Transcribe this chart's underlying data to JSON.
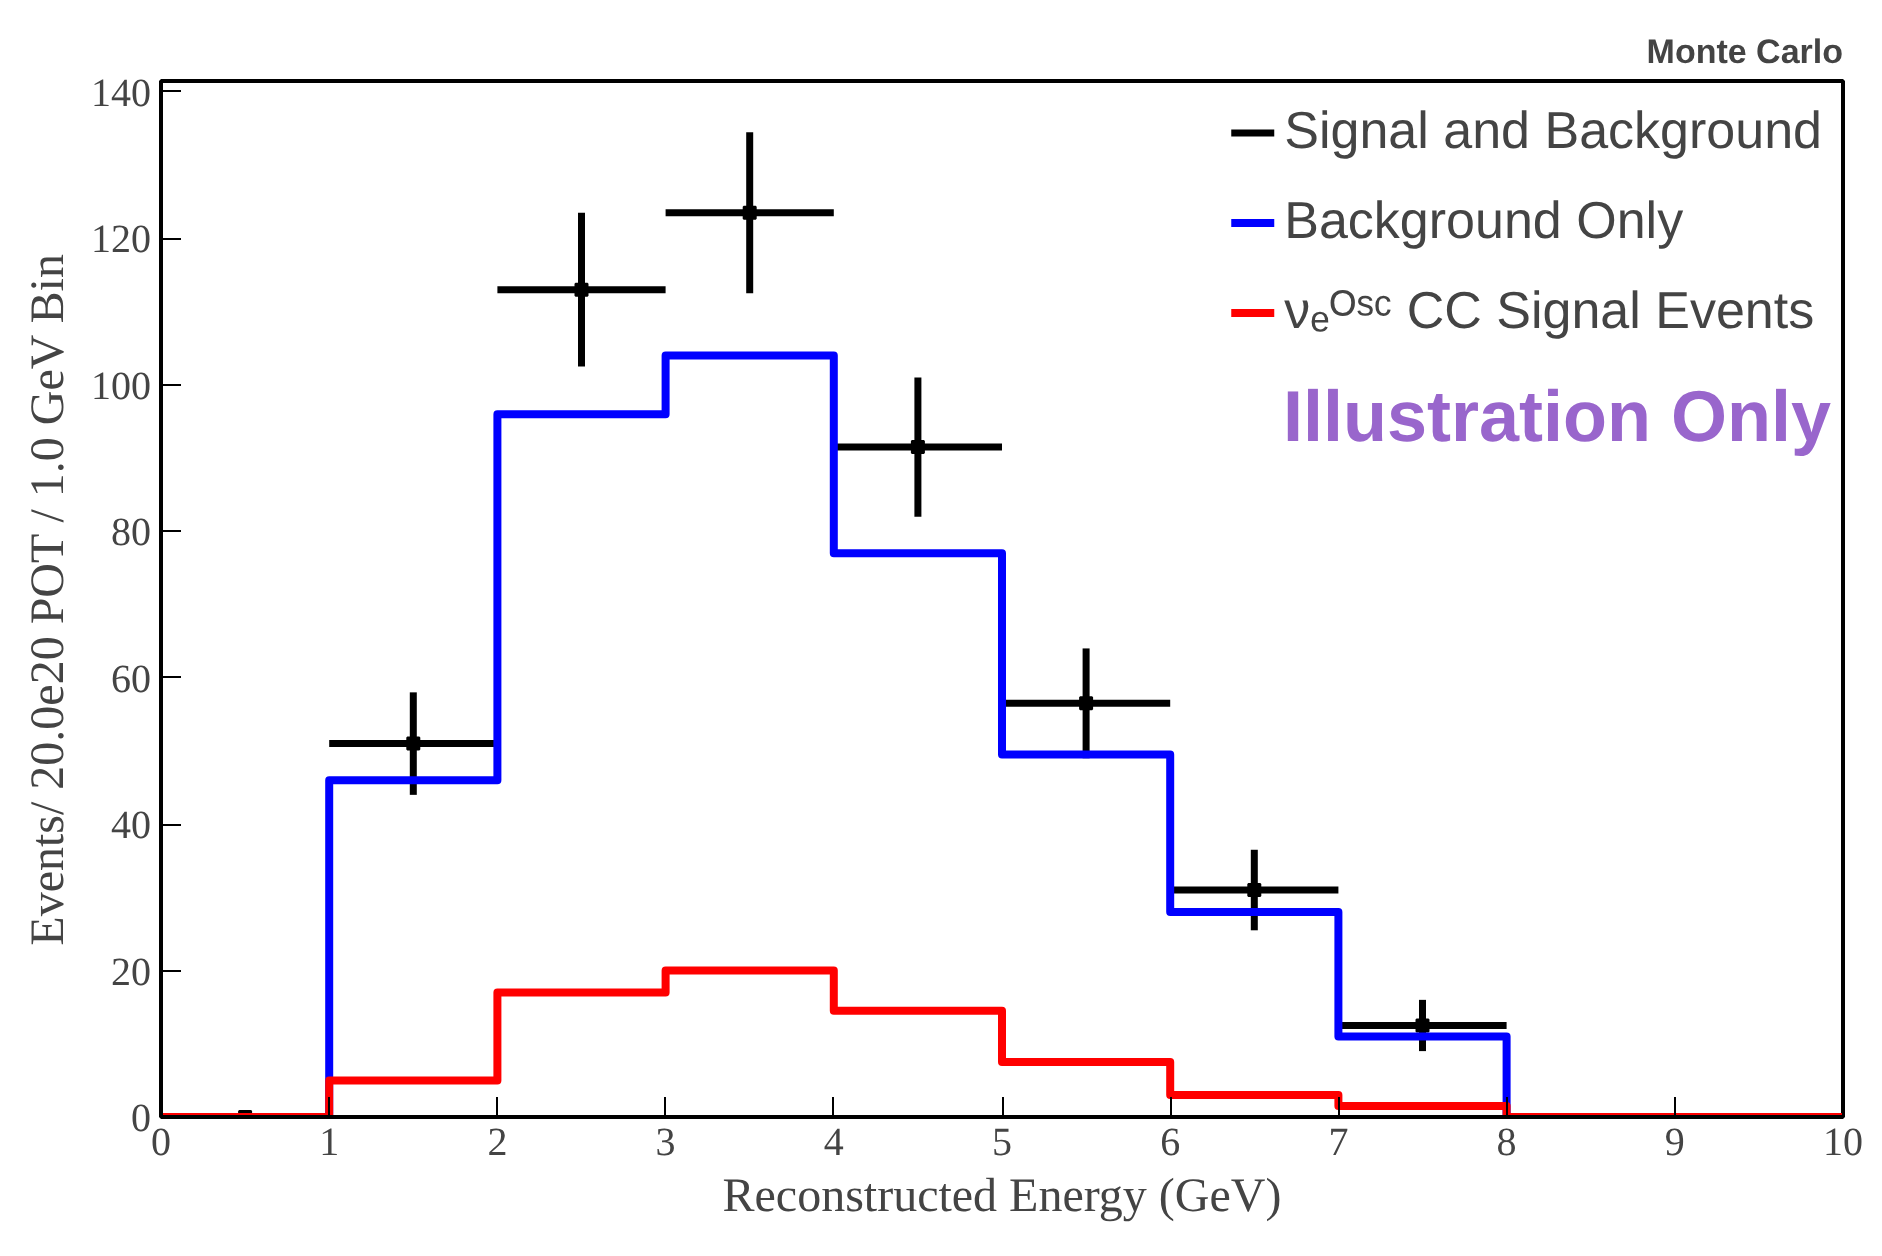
{
  "chart_data": {
    "type": "step",
    "title": "Monte Carlo",
    "xlabel": "Reconstructed Energy (GeV)",
    "ylabel": "Events/ 20.0e20 POT / 1.0 GeV Bin",
    "xlim": [
      0,
      10
    ],
    "ylim": [
      0,
      141.5
    ],
    "xticks": [
      0,
      1,
      2,
      3,
      4,
      5,
      6,
      7,
      8,
      9,
      10
    ],
    "yticks": [
      0,
      20,
      40,
      60,
      80,
      100,
      120,
      140
    ],
    "grid": false,
    "legend": "top right",
    "annotations": [
      "Illustration Only"
    ],
    "series": [
      {
        "name": "Signal and Background",
        "type": "scatter",
        "color": "#000000",
        "marker": "square",
        "x": [
          0.5,
          1.5,
          2.5,
          3.5,
          4.5,
          5.5,
          6.5,
          7.5
        ],
        "values": [
          0,
          51,
          113,
          123.5,
          91.5,
          56.5,
          31,
          12.5
        ],
        "errors": [
          null,
          7,
          10.5,
          11,
          9.5,
          7.5,
          5.5,
          3.5
        ],
        "xerrors": [
          null,
          0.5,
          0.5,
          0.5,
          0.5,
          0.5,
          0.5,
          0.5
        ]
      },
      {
        "name": "Background Only",
        "color": "#0000ff",
        "x": [
          0,
          1,
          2,
          3,
          4,
          5,
          6,
          7,
          8,
          9,
          10
        ],
        "values": [
          0,
          46,
          96,
          104,
          77,
          49.5,
          28,
          11,
          0,
          0,
          0
        ]
      },
      {
        "name": "νₑᴼˢᶜ CC Signal Events",
        "color": "#ff0000",
        "x": [
          0,
          1,
          2,
          3,
          4,
          5,
          6,
          7,
          8,
          9,
          10
        ],
        "values": [
          0,
          5,
          17,
          20,
          14.5,
          7.5,
          3,
          1.5,
          0,
          0,
          0
        ]
      }
    ]
  }
}
